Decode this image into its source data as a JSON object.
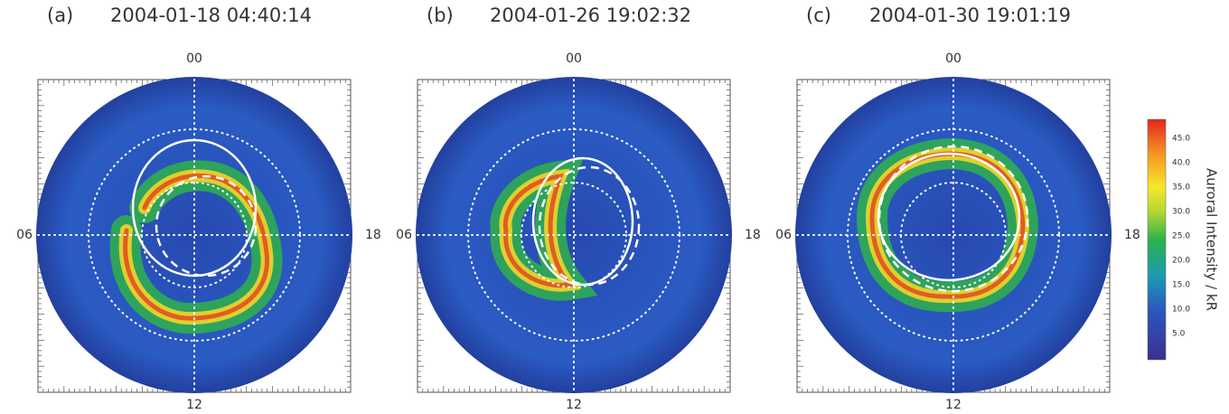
{
  "panels": [
    {
      "label": "(a)",
      "date": "2004-01-18 04:40:14",
      "top": "00",
      "left": "06",
      "right": "18",
      "bottom": "12"
    },
    {
      "label": "(b)",
      "date": "2004-01-26 19:02:32",
      "top": "00",
      "left": "06",
      "right": "18",
      "bottom": "12"
    },
    {
      "label": "(c)",
      "date": "2004-01-30 19:01:19",
      "top": "00",
      "left": "06",
      "right": "18",
      "bottom": "12"
    }
  ],
  "colorbar": {
    "title": "Auroral Intensity / kR",
    "ticks": [
      "45.0",
      "40.0",
      "35.0",
      "30.0",
      "25.0",
      "20.0",
      "15.0",
      "10.0",
      "5.0"
    ]
  }
}
